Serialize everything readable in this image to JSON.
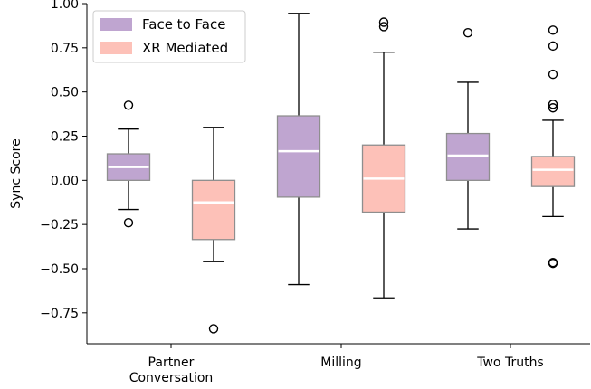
{
  "chart_data": {
    "type": "boxplot",
    "title": "",
    "xlabel": "",
    "ylabel": "Sync Score",
    "ylim": [
      -0.925,
      1.0
    ],
    "yticks": [
      1.0,
      0.75,
      0.5,
      0.25,
      0.0,
      -0.25,
      -0.5,
      -0.75
    ],
    "ytick_labels": [
      "1.00",
      "0.75",
      "0.50",
      "0.25",
      "0.00",
      "−0.25",
      "−0.50",
      "−0.75"
    ],
    "categories": [
      {
        "label_lines": [
          "Partner",
          "Conversation"
        ]
      },
      {
        "label_lines": [
          "Milling"
        ]
      },
      {
        "label_lines": [
          "Two Truths"
        ]
      }
    ],
    "legend": {
      "position": "top-left"
    },
    "series": [
      {
        "name": "Face to Face",
        "color": "#bfa5d0",
        "edge_color": "#8e8e8e",
        "boxes": [
          {
            "whislo": -0.165,
            "q1": 0.0,
            "med": 0.075,
            "q3": 0.15,
            "whishi": 0.29,
            "fliers": [
              0.425,
              -0.24
            ]
          },
          {
            "whislo": -0.59,
            "q1": -0.095,
            "med": 0.165,
            "q3": 0.365,
            "whishi": 0.945,
            "fliers": []
          },
          {
            "whislo": -0.275,
            "q1": 0.0,
            "med": 0.14,
            "q3": 0.265,
            "whishi": 0.555,
            "fliers": [
              0.835
            ]
          }
        ]
      },
      {
        "name": "XR Mediated",
        "color": "#fdc1b8",
        "edge_color": "#8e8e8e",
        "boxes": [
          {
            "whislo": -0.46,
            "q1": -0.335,
            "med": -0.125,
            "q3": 0.0,
            "whishi": 0.3,
            "fliers": [
              -0.84
            ]
          },
          {
            "whislo": -0.665,
            "q1": -0.18,
            "med": 0.01,
            "q3": 0.2,
            "whishi": 0.725,
            "fliers": [
              0.895,
              0.87
            ]
          },
          {
            "whislo": -0.205,
            "q1": -0.035,
            "med": 0.06,
            "q3": 0.135,
            "whishi": 0.34,
            "fliers": [
              0.85,
              0.76,
              0.6,
              0.43,
              0.41,
              -0.465,
              -0.47
            ]
          }
        ]
      }
    ]
  }
}
